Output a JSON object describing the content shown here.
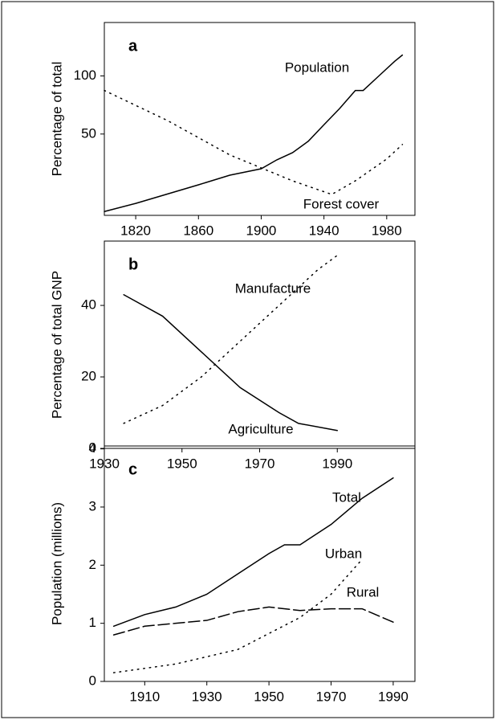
{
  "chart_data": [
    {
      "type": "line",
      "label": "a",
      "ylabel": "Percentage of total",
      "xlim": [
        1800,
        1998
      ],
      "xticks": [
        1820,
        1860,
        1900,
        1940,
        1980
      ],
      "ylim": [
        -20,
        146
      ],
      "yticks": [
        50,
        100
      ],
      "series": [
        {
          "name": "Population",
          "color": "#000000",
          "dash": "solid",
          "x": [
            1800,
            1820,
            1860,
            1880,
            1900,
            1910,
            1920,
            1930,
            1940,
            1950,
            1960,
            1965,
            1975,
            1985,
            1990
          ],
          "values": [
            -16.7,
            -9.7,
            6.3,
            14.6,
            20.1,
            27.8,
            34,
            43.8,
            58,
            72,
            87.5,
            87.5,
            100,
            112.5,
            118
          ]
        },
        {
          "name": "Forest cover",
          "color": "#000000",
          "dash": "dotted",
          "x": [
            1800,
            1840,
            1880,
            1920,
            1945,
            1960,
            1980,
            1990
          ],
          "values": [
            87.5,
            61.8,
            32,
            9.7,
            -2,
            9.7,
            28.5,
            41
          ]
        }
      ]
    },
    {
      "type": "line",
      "label": "b",
      "ylabel": "Percentage of total GNP",
      "xlim": [
        1930,
        2010
      ],
      "xticks": [
        1930,
        1950,
        1970,
        1990
      ],
      "ylim": [
        0,
        58
      ],
      "yticks": [
        0,
        20,
        40
      ],
      "series": [
        {
          "name": "Manufacture",
          "color": "#000000",
          "dash": "dotted",
          "x": [
            1935,
            1945,
            1955,
            1965,
            1975,
            1985,
            1990
          ],
          "values": [
            7,
            12,
            20,
            30,
            40,
            50,
            54
          ]
        },
        {
          "name": "Agriculture",
          "color": "#000000",
          "dash": "solid",
          "x": [
            1935,
            1945,
            1955,
            1965,
            1975,
            1980,
            1990
          ],
          "values": [
            43,
            37,
            27,
            17,
            10,
            7,
            5
          ]
        }
      ]
    },
    {
      "type": "line",
      "label": "c",
      "ylabel": "Population (millions)",
      "xlim": [
        1897,
        1997
      ],
      "xticks": [
        1910,
        1930,
        1950,
        1970,
        1990
      ],
      "ylim": [
        0,
        4.05
      ],
      "yticks": [
        0,
        1,
        2,
        3,
        4
      ],
      "series": [
        {
          "name": "Total",
          "color": "#000000",
          "dash": "solid",
          "x": [
            1900,
            1910,
            1920,
            1930,
            1940,
            1950,
            1955,
            1960,
            1970,
            1980,
            1990
          ],
          "values": [
            0.95,
            1.15,
            1.28,
            1.5,
            1.85,
            2.2,
            2.35,
            2.35,
            2.7,
            3.15,
            3.5
          ]
        },
        {
          "name": "Urban",
          "color": "#000000",
          "dash": "dotted",
          "x": [
            1900,
            1920,
            1940,
            1960,
            1970,
            1980
          ],
          "values": [
            0.15,
            0.3,
            0.55,
            1.1,
            1.5,
            2.1
          ]
        },
        {
          "name": "Rural",
          "color": "#000000",
          "dash": "dashed",
          "x": [
            1900,
            1910,
            1920,
            1930,
            1940,
            1950,
            1960,
            1970,
            1980,
            1990
          ],
          "values": [
            0.8,
            0.95,
            1.0,
            1.05,
            1.2,
            1.28,
            1.22,
            1.25,
            1.25,
            1.02
          ]
        }
      ]
    }
  ]
}
